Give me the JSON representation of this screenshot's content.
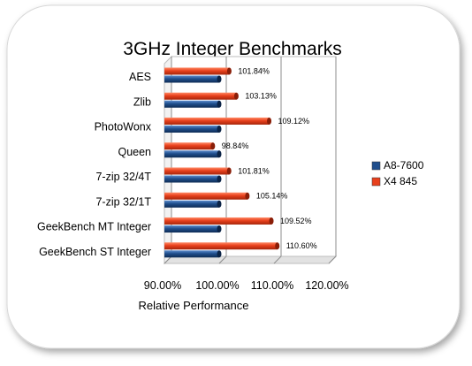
{
  "chart_data": {
    "type": "bar",
    "orientation": "horizontal",
    "title": "3GHz Integer Benchmarks",
    "xlabel": "Relative Performance",
    "ylabel": "",
    "xlim": [
      0.9,
      1.2
    ],
    "x_ticks": [
      "90.00%",
      "100.00%",
      "110.00%",
      "120.00%"
    ],
    "x_tick_values": [
      0.9,
      1.0,
      1.1,
      1.2
    ],
    "grid": true,
    "legend_position": "right",
    "categories": [
      "AES",
      "Zlib",
      "PhotoWonx",
      "Queen",
      "7-zip 32/4T",
      "7-zip 32/1T",
      "GeekBench MT Integer",
      "GeekBench ST Integer"
    ],
    "series": [
      {
        "name": "A8-7600",
        "color": "#1f4e8c",
        "values": [
          1.0,
          1.0,
          1.0,
          1.0,
          1.0,
          1.0,
          1.0,
          1.0
        ],
        "data_labels": [
          "",
          "",
          "",
          "",
          "",
          "",
          "",
          ""
        ]
      },
      {
        "name": "X4 845",
        "color": "#e8401c",
        "values": [
          1.0184,
          1.0313,
          1.0912,
          0.9884,
          1.0181,
          1.0514,
          1.0952,
          1.106
        ],
        "data_labels": [
          "101.84%",
          "103.13%",
          "109.12%",
          "98.84%",
          "101.81%",
          "105.14%",
          "109.52%",
          "110.60%"
        ]
      }
    ]
  }
}
